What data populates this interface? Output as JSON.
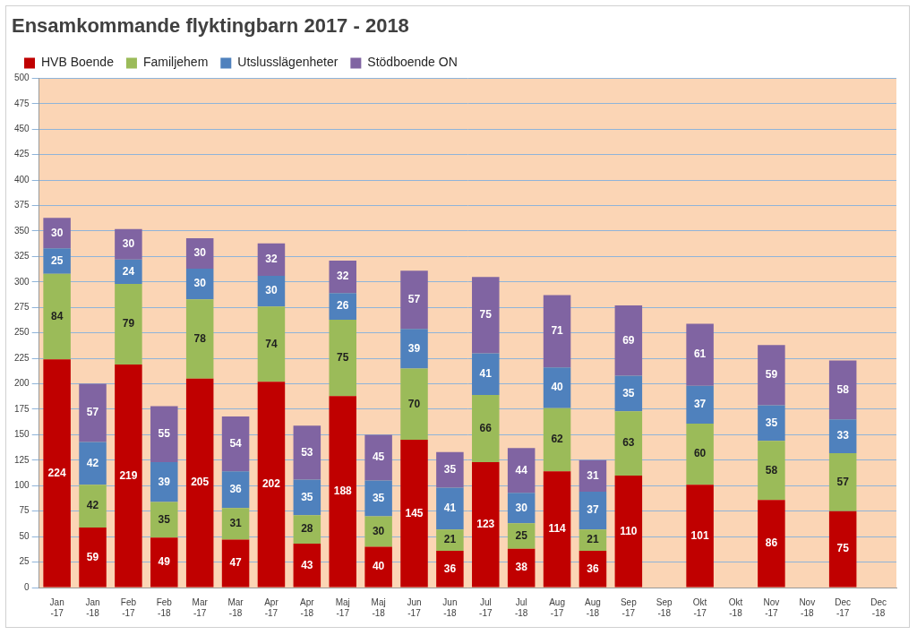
{
  "chart_data": {
    "type": "bar",
    "title": "Ensamkommande flyktingbarn 2017 - 2018",
    "categories": [
      "Jan -17",
      "Jan -18",
      "Feb -17",
      "Feb -18",
      "Mar -17",
      "Mar -18",
      "Apr -17",
      "Apr -18",
      "Maj -17",
      "Maj -18",
      "Jun -17",
      "Jun -18",
      "Jul -17",
      "Jul -18",
      "Aug -17",
      "Aug -18",
      "Sep -17",
      "Sep -18",
      "Okt -17",
      "Okt -18",
      "Nov -17",
      "Nov -18",
      "Dec -17",
      "Dec -18"
    ],
    "series": [
      {
        "name": "HVB Boende",
        "color": "#c00000",
        "values": [
          224,
          59,
          219,
          49,
          205,
          47,
          202,
          43,
          188,
          40,
          145,
          36,
          123,
          38,
          114,
          36,
          110,
          null,
          101,
          null,
          86,
          null,
          75,
          null
        ]
      },
      {
        "name": "Familjehem",
        "color": "#9bbb59",
        "values": [
          84,
          42,
          79,
          35,
          78,
          31,
          74,
          28,
          75,
          30,
          70,
          21,
          66,
          25,
          62,
          21,
          63,
          null,
          60,
          null,
          58,
          null,
          57,
          null
        ]
      },
      {
        "name": "Utslusslägenheter",
        "color": "#4f81bd",
        "values": [
          25,
          42,
          24,
          39,
          30,
          36,
          30,
          35,
          26,
          35,
          39,
          41,
          41,
          30,
          40,
          37,
          35,
          null,
          37,
          null,
          35,
          null,
          33,
          null
        ]
      },
      {
        "name": "Stödboende ON",
        "color": "#8064a2",
        "values": [
          30,
          57,
          30,
          55,
          30,
          54,
          32,
          53,
          32,
          45,
          57,
          35,
          75,
          44,
          71,
          31,
          69,
          null,
          61,
          null,
          59,
          null,
          58,
          null
        ]
      }
    ],
    "ylim": [
      0,
      500
    ],
    "yticks": [
      0,
      25,
      50,
      75,
      100,
      125,
      150,
      175,
      200,
      225,
      250,
      275,
      300,
      325,
      350,
      375,
      400,
      425,
      450,
      475,
      500
    ],
    "grid": true,
    "stacked": true,
    "data_labels": true,
    "legend": "top"
  }
}
